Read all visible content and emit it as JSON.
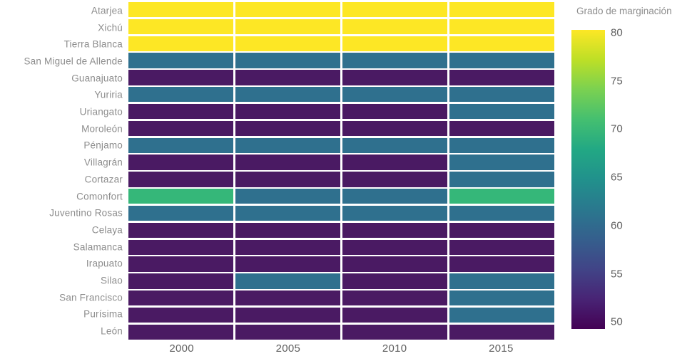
{
  "figure": {
    "background": "#ffffff"
  },
  "chart_data": {
    "type": "heatmap",
    "x": [
      "2000",
      "2005",
      "2010",
      "2015"
    ],
    "y": [
      "Atarjea",
      "Xichú",
      "Tierra Blanca",
      "San Miguel de Allende",
      "Guanajuato",
      "Yuriria",
      "Uriangato",
      "Moroleón",
      "Pénjamo",
      "Villagrán",
      "Cortazar",
      "Comonfort",
      "Juventino Rosas",
      "Celaya",
      "Salamanca",
      "Irapuato",
      "Silao",
      "San Francisco",
      "Purísima",
      "León"
    ],
    "values": [
      [
        80,
        80,
        80,
        80
      ],
      [
        80,
        80,
        80,
        80
      ],
      [
        80,
        80,
        80,
        80
      ],
      [
        61,
        61,
        61,
        61
      ],
      [
        50.5,
        50.5,
        50.5,
        50.5
      ],
      [
        61,
        61,
        61,
        61
      ],
      [
        50.5,
        50.5,
        50.5,
        61
      ],
      [
        50.5,
        50.5,
        50.5,
        50.5
      ],
      [
        61,
        61,
        61,
        61
      ],
      [
        50.5,
        50.5,
        50.5,
        61
      ],
      [
        50.5,
        50.5,
        50.5,
        61
      ],
      [
        69.5,
        61,
        61,
        69.5
      ],
      [
        61,
        61,
        61,
        61
      ],
      [
        50.5,
        50.5,
        50.5,
        50.5
      ],
      [
        50.5,
        50.5,
        50.5,
        50.5
      ],
      [
        50.5,
        50.5,
        50.5,
        50.5
      ],
      [
        50.5,
        61,
        50.5,
        61
      ],
      [
        50.5,
        50.5,
        50.5,
        61
      ],
      [
        50.5,
        50.5,
        50.5,
        61
      ],
      [
        50.5,
        50.5,
        50.5,
        50.5
      ]
    ],
    "value_colors": {
      "80": "#fde725",
      "69.5": "#35b779",
      "61": "#2f708e",
      "50.5": "#4a1a63"
    },
    "colorscale": "viridis",
    "zmin": 49.3,
    "zmax": 80.3,
    "grid": false,
    "legend_position": "right",
    "colorbar": {
      "title": "Grado de marginación",
      "ticks": [
        "80",
        "75",
        "70",
        "65",
        "60",
        "55",
        "50"
      ],
      "gradient": [
        "#fde725",
        "#bddf26",
        "#7ad151",
        "#44bf70",
        "#22a884",
        "#21918c",
        "#2a788e",
        "#355f8d",
        "#414487",
        "#482475",
        "#440154"
      ]
    }
  }
}
